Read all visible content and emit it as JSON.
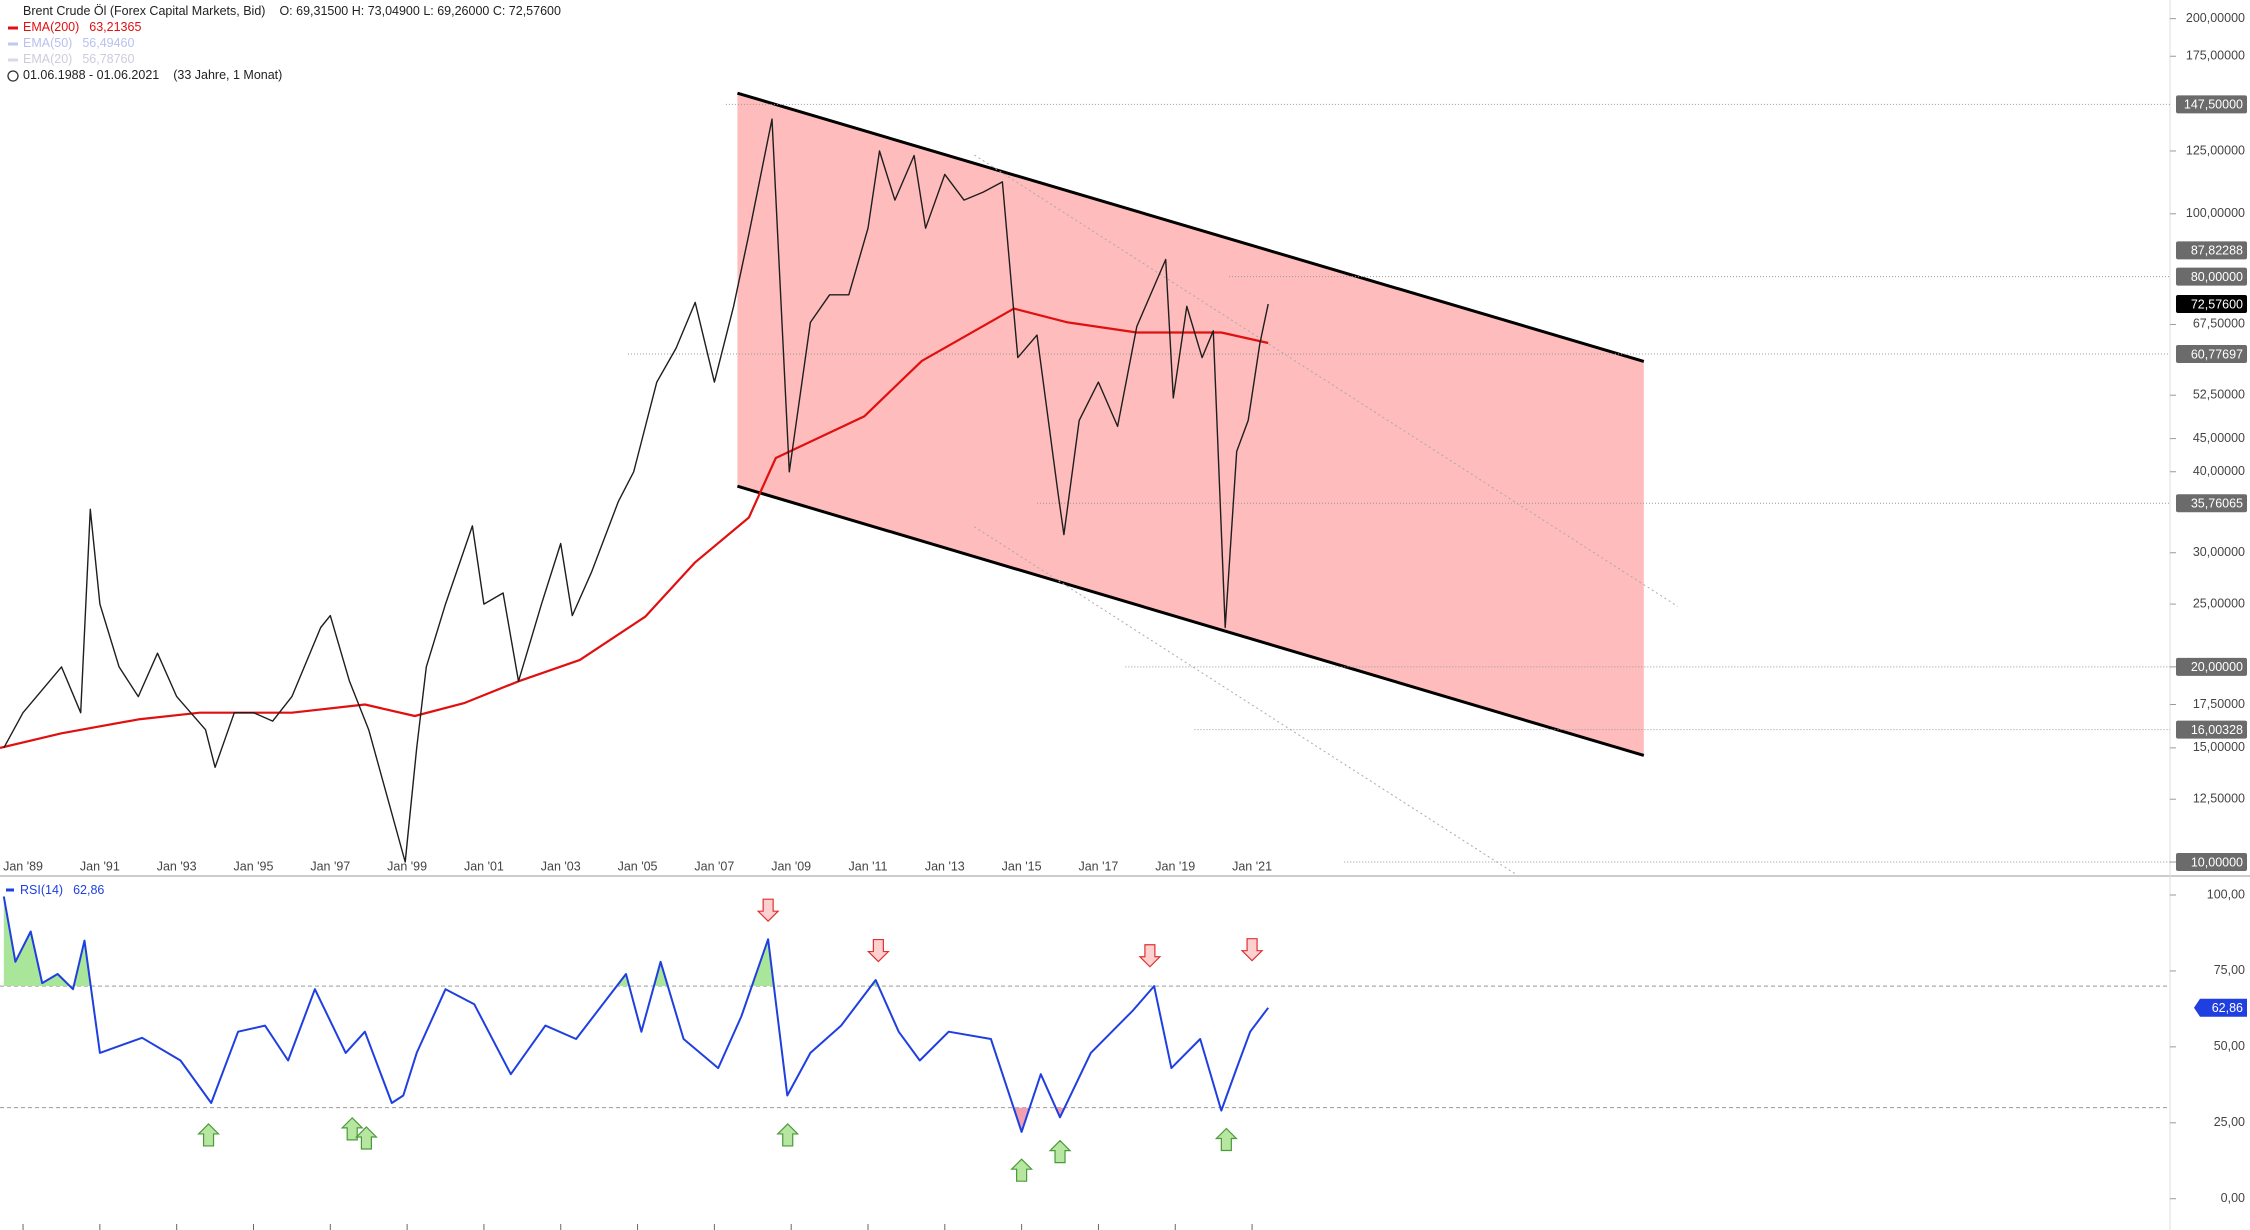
{
  "header": {
    "title": "Brent Crude Öl (Forex Capital Markets, Bid)",
    "quote": "O: 69,31500  H: 73,04900  L: 69,26000  C: 72,57600",
    "range": "01.06.1988 - 01.06.2021",
    "span": "(33 Jahre, 1 Monat)"
  },
  "chart_data": [
    {
      "type": "line",
      "log_scale": true,
      "color": "#1e1e1e",
      "xlim": [
        1988.4,
        2044.9
      ],
      "ylim": [
        9.55,
        213.7
      ],
      "xticks": [
        {
          "value": 1989,
          "label": "Jan '89"
        },
        {
          "value": 1991,
          "label": "Jan '91"
        },
        {
          "value": 1993,
          "label": "Jan '93"
        },
        {
          "value": 1995,
          "label": "Jan '95"
        },
        {
          "value": 1997,
          "label": "Jan '97"
        },
        {
          "value": 1999,
          "label": "Jan '99"
        },
        {
          "value": 2001,
          "label": "Jan '01"
        },
        {
          "value": 2003,
          "label": "Jan '03"
        },
        {
          "value": 2005,
          "label": "Jan '05"
        },
        {
          "value": 2007,
          "label": "Jan '07"
        },
        {
          "value": 2009,
          "label": "Jan '09"
        },
        {
          "value": 2011,
          "label": "Jan '11"
        },
        {
          "value": 2013,
          "label": "Jan '13"
        },
        {
          "value": 2015,
          "label": "Jan '15"
        },
        {
          "value": 2017,
          "label": "Jan '17"
        },
        {
          "value": 2019,
          "label": "Jan '19"
        },
        {
          "value": 2021,
          "label": "Jan '21"
        }
      ],
      "yticks": [
        {
          "value": 10,
          "label": "10,00000"
        },
        {
          "value": 12.5,
          "label": "12,50000"
        },
        {
          "value": 15,
          "label": "15,00000"
        },
        {
          "value": 17.5,
          "label": "17,50000"
        },
        {
          "value": 20,
          "label": "20,00000"
        },
        {
          "value": 25,
          "label": "25,00000"
        },
        {
          "value": 30,
          "label": "30,00000"
        },
        {
          "value": 40,
          "label": "40,00000"
        },
        {
          "value": 45,
          "label": "45,00000"
        },
        {
          "value": 52.5,
          "label": "52,50000"
        },
        {
          "value": 67.5,
          "label": "67,50000"
        },
        {
          "value": 100,
          "label": "100,00000"
        },
        {
          "value": 125,
          "label": "125,00000"
        },
        {
          "value": 175,
          "label": "175,00000"
        },
        {
          "value": 200,
          "label": "200,00000"
        }
      ],
      "x": [
        1988.5,
        1989,
        1990,
        1990.5,
        1990.75,
        1991,
        1991.5,
        1992,
        1992.5,
        1993,
        1993.75,
        1994,
        1994.5,
        1995,
        1995.5,
        1996,
        1996.75,
        1997,
        1997.5,
        1998,
        1998.5,
        1998.95,
        1999.25,
        1999.5,
        2000,
        2000.7,
        2001,
        2001.5,
        2001.9,
        2002.5,
        2003,
        2003.3,
        2003.8,
        2004.5,
        2004.9,
        2005.5,
        2006,
        2006.5,
        2007,
        2007.5,
        2007.9,
        2008.5,
        2008.95,
        2009.5,
        2010,
        2010.5,
        2011,
        2011.3,
        2011.7,
        2012.2,
        2012.5,
        2013,
        2013.5,
        2014,
        2014.5,
        2014.9,
        2015.4,
        2015.95,
        2016.1,
        2016.5,
        2017,
        2017.5,
        2018,
        2018.75,
        2018.95,
        2019.3,
        2019.7,
        2019.99,
        2020.3,
        2020.6,
        2020.9,
        2021.2,
        2021.42
      ],
      "values": [
        15,
        17,
        20,
        17,
        35,
        25,
        20,
        18,
        21,
        18,
        16,
        14,
        17,
        17,
        16.5,
        18,
        23,
        24,
        19,
        16,
        12.5,
        10,
        15,
        20,
        25,
        33,
        25,
        26,
        19,
        25,
        31,
        24,
        28,
        36,
        40,
        55,
        62,
        73,
        55,
        72,
        93,
        140,
        40,
        68,
        75,
        75,
        95,
        125,
        105,
        123,
        95,
        115,
        105,
        108,
        112,
        60,
        65,
        37,
        32,
        48,
        55,
        47,
        67,
        85,
        52,
        72,
        60,
        66,
        23,
        43,
        48,
        63,
        72.576
      ],
      "series": [
        {
          "name": "EMA(200)",
          "legend_value": "63,21365",
          "color": "#e01010",
          "x": [
            1988.4,
            1990,
            1992,
            1993.6,
            1996,
            1997.9,
            1999.2,
            2000.5,
            2001.9,
            2003.5,
            2005.2,
            2006.5,
            2007.9,
            2008.6,
            2010.9,
            2012.4,
            2014.8,
            2016.2,
            2018,
            2020.2,
            2021.42
          ],
          "values": [
            15,
            15.8,
            16.6,
            17,
            17,
            17.5,
            16.8,
            17.6,
            19,
            20.5,
            23.9,
            29,
            34,
            42,
            48.7,
            59.3,
            71.4,
            68,
            65.6,
            65.6,
            63.2
          ]
        }
      ],
      "hidden_legend": [
        {
          "name": "EMA(50)",
          "legend_value": "56,49460"
        },
        {
          "name": "EMA(20)",
          "legend_value": "56,78760"
        }
      ],
      "channel": {
        "color": "#ffbcbc",
        "upper": [
          [
            2007.6,
            153.5
          ],
          [
            2031.2,
            59.2
          ]
        ],
        "lower": [
          [
            2007.6,
            38
          ],
          [
            2031.2,
            14.6
          ]
        ]
      },
      "dotted_lines": [
        [
          [
            2013.77,
            123.2
          ],
          [
            2032.08,
            24.8
          ]
        ],
        [
          [
            2013.77,
            32.9
          ],
          [
            2027.9,
            9.55
          ]
        ]
      ],
      "levels": [
        {
          "value": 147.5,
          "label": "147,50000",
          "from": 2007.3
        },
        {
          "value": 87.82288,
          "label": "87,82288"
        },
        {
          "value": 80,
          "label": "80,00000",
          "from": 2020.4
        },
        {
          "value": 72.576,
          "label": "72,57600",
          "current": true
        },
        {
          "value": 60.77697,
          "label": "60,77697",
          "from": 2004.75
        },
        {
          "value": 35.76065,
          "label": "35,76065",
          "from": 2015.4
        },
        {
          "value": 20,
          "label": "20,00000",
          "from": 2017.7
        },
        {
          "value": 16.00328,
          "label": "16,00328",
          "from": 2019.5
        },
        {
          "value": 10,
          "label": "10,00000",
          "from": 2023.4
        }
      ]
    },
    {
      "type": "line",
      "title": "RSI(14)",
      "value_label": "62,86",
      "color": "#1f3fe0",
      "xlim": [
        1988.4,
        2044.9
      ],
      "ylim": [
        -10.3,
        105.6
      ],
      "yticks": [
        {
          "value": 0,
          "label": "0,00"
        },
        {
          "value": 25,
          "label": "25,00"
        },
        {
          "value": 50,
          "label": "50,00"
        },
        {
          "value": 75,
          "label": "75,00"
        },
        {
          "value": 100,
          "label": "100,00"
        }
      ],
      "bands": [
        30,
        70
      ],
      "over_color": "#a9e69a",
      "under_color": "#f0a0b0",
      "x": [
        1988.5,
        1988.8,
        1989.2,
        1989.5,
        1989.9,
        1990.3,
        1990.6,
        1991,
        1992.1,
        1993.1,
        1993.9,
        1994.6,
        1995.3,
        1995.9,
        1996.6,
        1997.4,
        1997.9,
        1998.6,
        1998.9,
        1999.25,
        2000,
        2000.75,
        2001.7,
        2002.6,
        2003.4,
        2004.7,
        2005.1,
        2005.6,
        2006.2,
        2007.1,
        2007.7,
        2008.4,
        2008.9,
        2009.5,
        2010.3,
        2011.2,
        2011.8,
        2012.35,
        2013.1,
        2014.2,
        2015,
        2015.5,
        2016,
        2016.8,
        2017.9,
        2018.45,
        2018.9,
        2019.65,
        2020.2,
        2020.6,
        2020.95,
        2021.42
      ],
      "values": [
        99.5,
        78,
        88,
        71,
        74,
        69,
        85,
        48,
        53,
        45.5,
        31.5,
        55,
        57,
        45.5,
        69,
        48,
        55,
        31.5,
        34,
        48,
        69,
        64,
        41,
        57,
        52.6,
        74,
        55,
        78,
        52.6,
        43,
        60,
        85.4,
        34,
        48,
        57,
        72,
        55,
        45.5,
        55,
        52.6,
        22,
        41,
        26.8,
        48,
        62,
        70,
        43,
        52.6,
        29,
        43,
        55,
        62.86
      ],
      "signals": [
        {
          "x": 1993.83,
          "value": 21,
          "direction": "up"
        },
        {
          "x": 1997.57,
          "value": 23,
          "direction": "up"
        },
        {
          "x": 1997.94,
          "value": 20,
          "direction": "up"
        },
        {
          "x": 2008.91,
          "value": 21,
          "direction": "up"
        },
        {
          "x": 2015.0,
          "value": 9.4,
          "direction": "up"
        },
        {
          "x": 2016.0,
          "value": 15.5,
          "direction": "up"
        },
        {
          "x": 2020.33,
          "value": 19.5,
          "direction": "up"
        },
        {
          "x": 2008.4,
          "value": 95,
          "direction": "down"
        },
        {
          "x": 2011.27,
          "value": 81.7,
          "direction": "down"
        },
        {
          "x": 2018.34,
          "value": 80,
          "direction": "down"
        },
        {
          "x": 2021.0,
          "value": 82,
          "direction": "down"
        }
      ]
    }
  ]
}
